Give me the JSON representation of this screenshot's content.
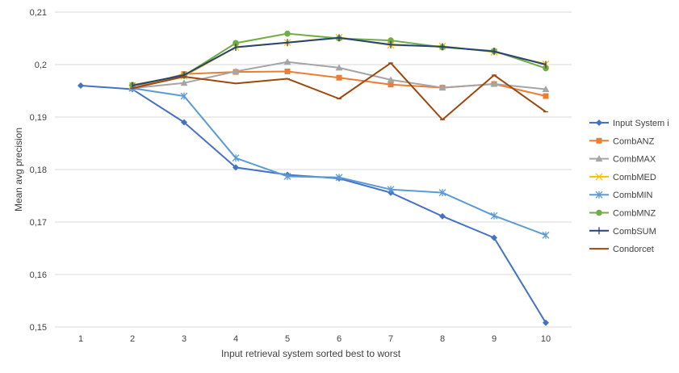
{
  "chart_data": {
    "type": "line",
    "title": "",
    "xlabel": "Input retrieval system sorted best to worst",
    "ylabel": "Mean avg precision",
    "categories": [
      "1",
      "2",
      "3",
      "4",
      "5",
      "6",
      "7",
      "8",
      "9",
      "10"
    ],
    "ylim": [
      0.15,
      0.21
    ],
    "yticks": [
      "0,15",
      "0,16",
      "0,17",
      "0,18",
      "0,19",
      "0,2",
      "0,21"
    ],
    "grid": true,
    "legend_position": "right",
    "series": [
      {
        "name": "Input System i",
        "color": "#4472C4",
        "marker": "diamond",
        "values": [
          0.196,
          0.1953,
          0.189,
          0.1804,
          0.179,
          0.1783,
          0.1756,
          0.1711,
          0.167,
          0.1508
        ]
      },
      {
        "name": "CombANZ",
        "color": "#ED7D31",
        "marker": "square",
        "values": [
          null,
          0.1955,
          0.1982,
          0.1986,
          0.1987,
          0.1975,
          0.1962,
          0.1956,
          0.1963,
          0.194
        ]
      },
      {
        "name": "CombMAX",
        "color": "#A5A5A5",
        "marker": "triangle",
        "values": [
          null,
          0.1955,
          0.1965,
          0.1987,
          0.2005,
          0.1994,
          0.1971,
          0.1956,
          0.1963,
          0.1953
        ]
      },
      {
        "name": "CombMED",
        "color": "#FFC000",
        "marker": "x",
        "values": [
          null,
          0.196,
          0.1978,
          0.2033,
          0.2042,
          0.2052,
          0.2037,
          0.2035,
          0.2024,
          0.2001
        ]
      },
      {
        "name": "CombMIN",
        "color": "#5B9BD5",
        "marker": "star",
        "values": [
          null,
          0.1955,
          0.194,
          0.1822,
          0.1787,
          0.1785,
          0.1762,
          0.1756,
          0.1712,
          0.1675
        ]
      },
      {
        "name": "CombMNZ",
        "color": "#70AD47",
        "marker": "circle",
        "values": [
          null,
          0.1961,
          0.1979,
          0.2041,
          0.2059,
          0.205,
          0.2046,
          0.2033,
          0.2026,
          0.1993
        ]
      },
      {
        "name": "CombSUM",
        "color": "#264478",
        "marker": "plus",
        "values": [
          null,
          0.196,
          0.198,
          0.2033,
          0.2042,
          0.2051,
          0.2038,
          0.2034,
          0.2025,
          0.2
        ]
      },
      {
        "name": "Condorcet",
        "color": "#9E480E",
        "marker": "dash",
        "values": [
          null,
          0.1955,
          0.1977,
          0.1964,
          0.1973,
          0.1935,
          0.2003,
          0.1895,
          0.198,
          0.191
        ]
      }
    ]
  }
}
